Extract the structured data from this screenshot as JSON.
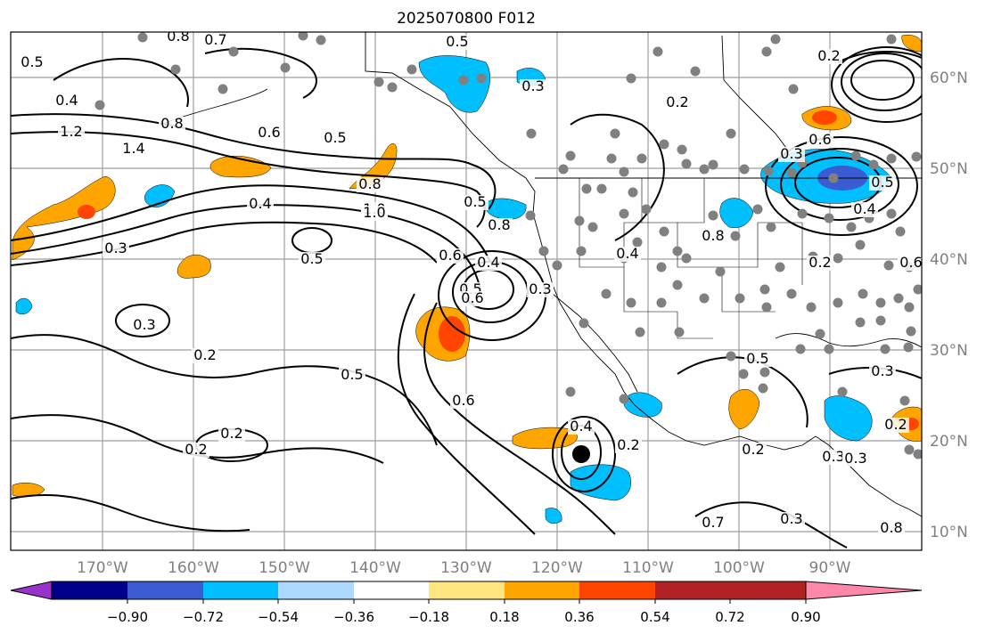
{
  "title": "2025070800 F012",
  "map": {
    "lon_labels": [
      "170°W",
      "160°W",
      "150°W",
      "140°W",
      "130°W",
      "120°W",
      "110°W",
      "100°W",
      "90°W"
    ],
    "lat_labels": [
      "60°N",
      "50°N",
      "40°N",
      "30°N",
      "20°N",
      "10°N"
    ],
    "contour_labels": [
      "0.8",
      "0.7",
      "0.5",
      "0.4",
      "0.5",
      "1.2",
      "1.4",
      "0.8",
      "0.6",
      "0.5",
      "0.8",
      "0.4",
      "1.0",
      "0.3",
      "0.5",
      "0.5",
      "0.6",
      "0.8",
      "1.0",
      "0.5",
      "0.6",
      "0.4",
      "0.3",
      "0.5",
      "0.3",
      "0.4",
      "0.2",
      "0.3",
      "0.2",
      "0.2",
      "0.2",
      "0.3",
      "0.8",
      "0.7",
      "0.2",
      "0.3",
      "0.5",
      "0.2",
      "0.4",
      "0.5",
      "0.6",
      "0.3",
      "0.2",
      "0.2",
      "0.3",
      "0.3",
      "0.2",
      "0.6",
      "0.4",
      "0.6",
      "0.8"
    ]
  },
  "colorbar": {
    "tick_labels": [
      "−0.90",
      "−0.72",
      "−0.54",
      "−0.36",
      "−0.18",
      "0.18",
      "0.36",
      "0.54",
      "0.72",
      "0.90"
    ],
    "colors": [
      "#9932cc",
      "#00008b",
      "#3b5bd1",
      "#00bfff",
      "#add8ff",
      "#ffffff",
      "#ffe680",
      "#ffa500",
      "#ff4500",
      "#b22222",
      "#ff88aa"
    ]
  },
  "colors": {
    "grid": "#9e9e9e",
    "station": "#808080",
    "contour": "#000000",
    "axis_label": "#808080"
  }
}
